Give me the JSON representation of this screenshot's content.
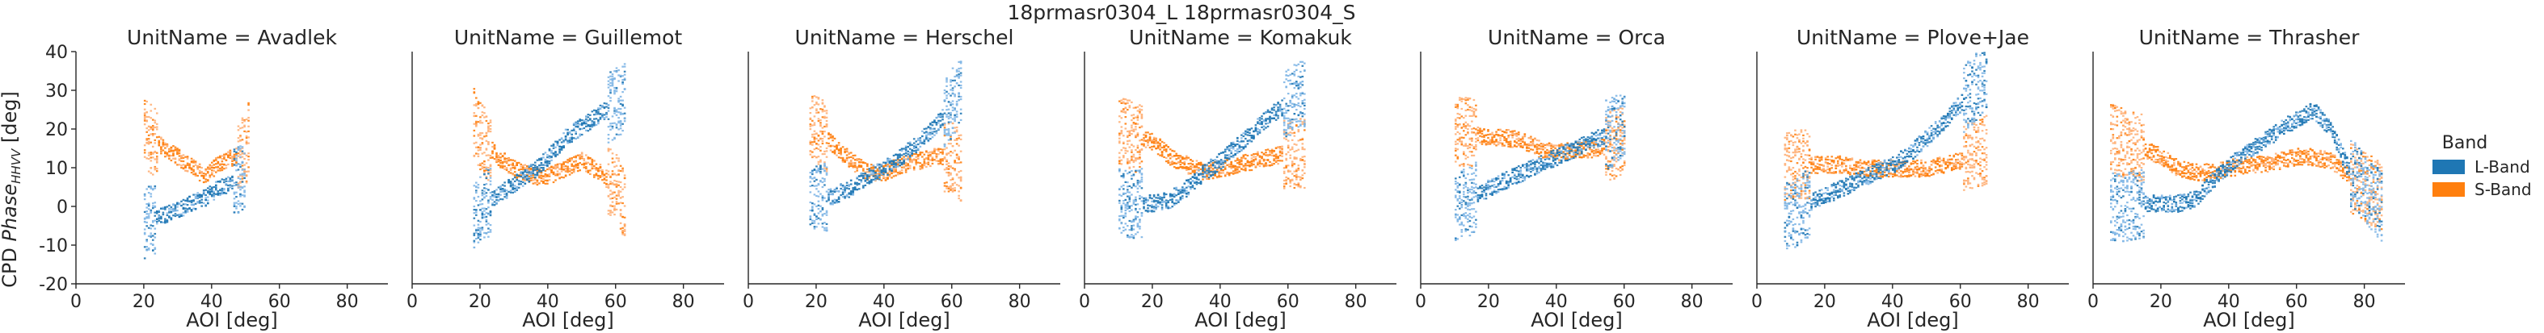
{
  "chart_data": {
    "type": "heatmap",
    "suptitle": "18prmasr0304_L 18prmasr0304_S",
    "xlabel": "AOI [deg]",
    "ylabel_prefix": "CPD ",
    "ylabel_italic": "Phase",
    "ylabel_sub": "HHVV",
    "ylabel_suffix": " [deg]",
    "xlim": [
      0,
      92
    ],
    "ylim": [
      -20,
      40
    ],
    "xticks": [
      "0",
      "20",
      "40",
      "60",
      "80"
    ],
    "yticks": [
      "40",
      "30",
      "20",
      "10",
      "0",
      "-10",
      "-20"
    ],
    "legend": {
      "title": "Band",
      "position": "right",
      "entries": [
        {
          "label": "L-Band",
          "color": "#1f77b4"
        },
        {
          "label": "S-Band",
          "color": "#ff7f0e"
        }
      ]
    },
    "panels": [
      {
        "title": "UnitName = Avadlek",
        "L": [
          [
            20,
            -5
          ],
          [
            21,
            -2
          ],
          [
            23,
            -3
          ],
          [
            37,
            2
          ],
          [
            39,
            3
          ],
          [
            40,
            4
          ],
          [
            50,
            8
          ]
        ],
        "S": [
          [
            20,
            20
          ],
          [
            21,
            18
          ],
          [
            23,
            17
          ],
          [
            38,
            8
          ],
          [
            40,
            10
          ],
          [
            50,
            15
          ],
          [
            51,
            20
          ]
        ]
      },
      {
        "title": "UnitName = Guillemot",
        "L": [
          [
            18,
            -3
          ],
          [
            20,
            0
          ],
          [
            25,
            3
          ],
          [
            30,
            6
          ],
          [
            35,
            9
          ],
          [
            40,
            13
          ],
          [
            45,
            18
          ],
          [
            50,
            21
          ],
          [
            55,
            24
          ],
          [
            60,
            27
          ],
          [
            63,
            29
          ]
        ],
        "S": [
          [
            18,
            22
          ],
          [
            20,
            18
          ],
          [
            25,
            13
          ],
          [
            30,
            10
          ],
          [
            35,
            8
          ],
          [
            40,
            8
          ],
          [
            45,
            10
          ],
          [
            50,
            12
          ],
          [
            55,
            9
          ],
          [
            60,
            5
          ],
          [
            63,
            0
          ]
        ]
      },
      {
        "title": "UnitName = Herschel",
        "L": [
          [
            18,
            2
          ],
          [
            20,
            2
          ],
          [
            25,
            3
          ],
          [
            30,
            5
          ],
          [
            35,
            8
          ],
          [
            40,
            10
          ],
          [
            45,
            13
          ],
          [
            50,
            17
          ],
          [
            55,
            21
          ],
          [
            60,
            27
          ],
          [
            63,
            30
          ]
        ],
        "S": [
          [
            18,
            22
          ],
          [
            20,
            20
          ],
          [
            25,
            16
          ],
          [
            30,
            12
          ],
          [
            35,
            9
          ],
          [
            40,
            9
          ],
          [
            45,
            11
          ],
          [
            50,
            12
          ],
          [
            55,
            13
          ],
          [
            60,
            13
          ],
          [
            63,
            10
          ]
        ]
      },
      {
        "title": "UnitName = Komakuk",
        "L": [
          [
            10,
            1
          ],
          [
            15,
            1
          ],
          [
            20,
            1
          ],
          [
            25,
            2
          ],
          [
            30,
            5
          ],
          [
            35,
            9
          ],
          [
            40,
            12
          ],
          [
            45,
            16
          ],
          [
            50,
            20
          ],
          [
            55,
            24
          ],
          [
            60,
            27
          ],
          [
            65,
            30
          ]
        ],
        "S": [
          [
            10,
            20
          ],
          [
            15,
            18
          ],
          [
            20,
            17
          ],
          [
            25,
            13
          ],
          [
            30,
            11
          ],
          [
            35,
            9
          ],
          [
            40,
            10
          ],
          [
            45,
            11
          ],
          [
            50,
            12
          ],
          [
            55,
            13
          ],
          [
            60,
            14
          ],
          [
            65,
            14
          ]
        ]
      },
      {
        "title": "UnitName = Orca",
        "L": [
          [
            10,
            0
          ],
          [
            15,
            2
          ],
          [
            20,
            5
          ],
          [
            25,
            7
          ],
          [
            30,
            9
          ],
          [
            35,
            11
          ],
          [
            40,
            13
          ],
          [
            45,
            15
          ],
          [
            50,
            17
          ],
          [
            55,
            19
          ],
          [
            60,
            21
          ]
        ],
        "S": [
          [
            10,
            20
          ],
          [
            15,
            19
          ],
          [
            20,
            18
          ],
          [
            25,
            18
          ],
          [
            30,
            17
          ],
          [
            35,
            15
          ],
          [
            40,
            14
          ],
          [
            45,
            15
          ],
          [
            50,
            15
          ],
          [
            55,
            16
          ],
          [
            60,
            17
          ]
        ]
      },
      {
        "title": "UnitName = Plove+Jae",
        "L": [
          [
            8,
            -3
          ],
          [
            10,
            -2
          ],
          [
            15,
            1
          ],
          [
            20,
            3
          ],
          [
            25,
            5
          ],
          [
            30,
            7
          ],
          [
            35,
            9
          ],
          [
            40,
            11
          ],
          [
            45,
            14
          ],
          [
            50,
            18
          ],
          [
            55,
            22
          ],
          [
            60,
            27
          ],
          [
            65,
            32
          ],
          [
            68,
            35
          ]
        ],
        "S": [
          [
            8,
            10
          ],
          [
            10,
            11
          ],
          [
            15,
            11
          ],
          [
            20,
            11
          ],
          [
            25,
            11
          ],
          [
            30,
            10
          ],
          [
            35,
            10
          ],
          [
            40,
            10
          ],
          [
            45,
            10
          ],
          [
            50,
            10
          ],
          [
            55,
            11
          ],
          [
            60,
            12
          ],
          [
            65,
            14
          ],
          [
            68,
            15
          ]
        ]
      },
      {
        "title": "UnitName = Thrasher",
        "L": [
          [
            5,
            0
          ],
          [
            10,
            0
          ],
          [
            15,
            1
          ],
          [
            20,
            1
          ],
          [
            25,
            1
          ],
          [
            30,
            2
          ],
          [
            35,
            7
          ],
          [
            40,
            11
          ],
          [
            45,
            14
          ],
          [
            50,
            17
          ],
          [
            55,
            20
          ],
          [
            60,
            23
          ],
          [
            65,
            25
          ],
          [
            70,
            20
          ],
          [
            75,
            10
          ],
          [
            80,
            5
          ],
          [
            85,
            0
          ]
        ],
        "S": [
          [
            5,
            18
          ],
          [
            10,
            16
          ],
          [
            15,
            15
          ],
          [
            20,
            13
          ],
          [
            25,
            10
          ],
          [
            30,
            9
          ],
          [
            35,
            9
          ],
          [
            40,
            10
          ],
          [
            45,
            11
          ],
          [
            50,
            11
          ],
          [
            55,
            12
          ],
          [
            60,
            13
          ],
          [
            65,
            13
          ],
          [
            70,
            12
          ],
          [
            75,
            8
          ],
          [
            80,
            5
          ],
          [
            85,
            3
          ]
        ]
      }
    ]
  }
}
